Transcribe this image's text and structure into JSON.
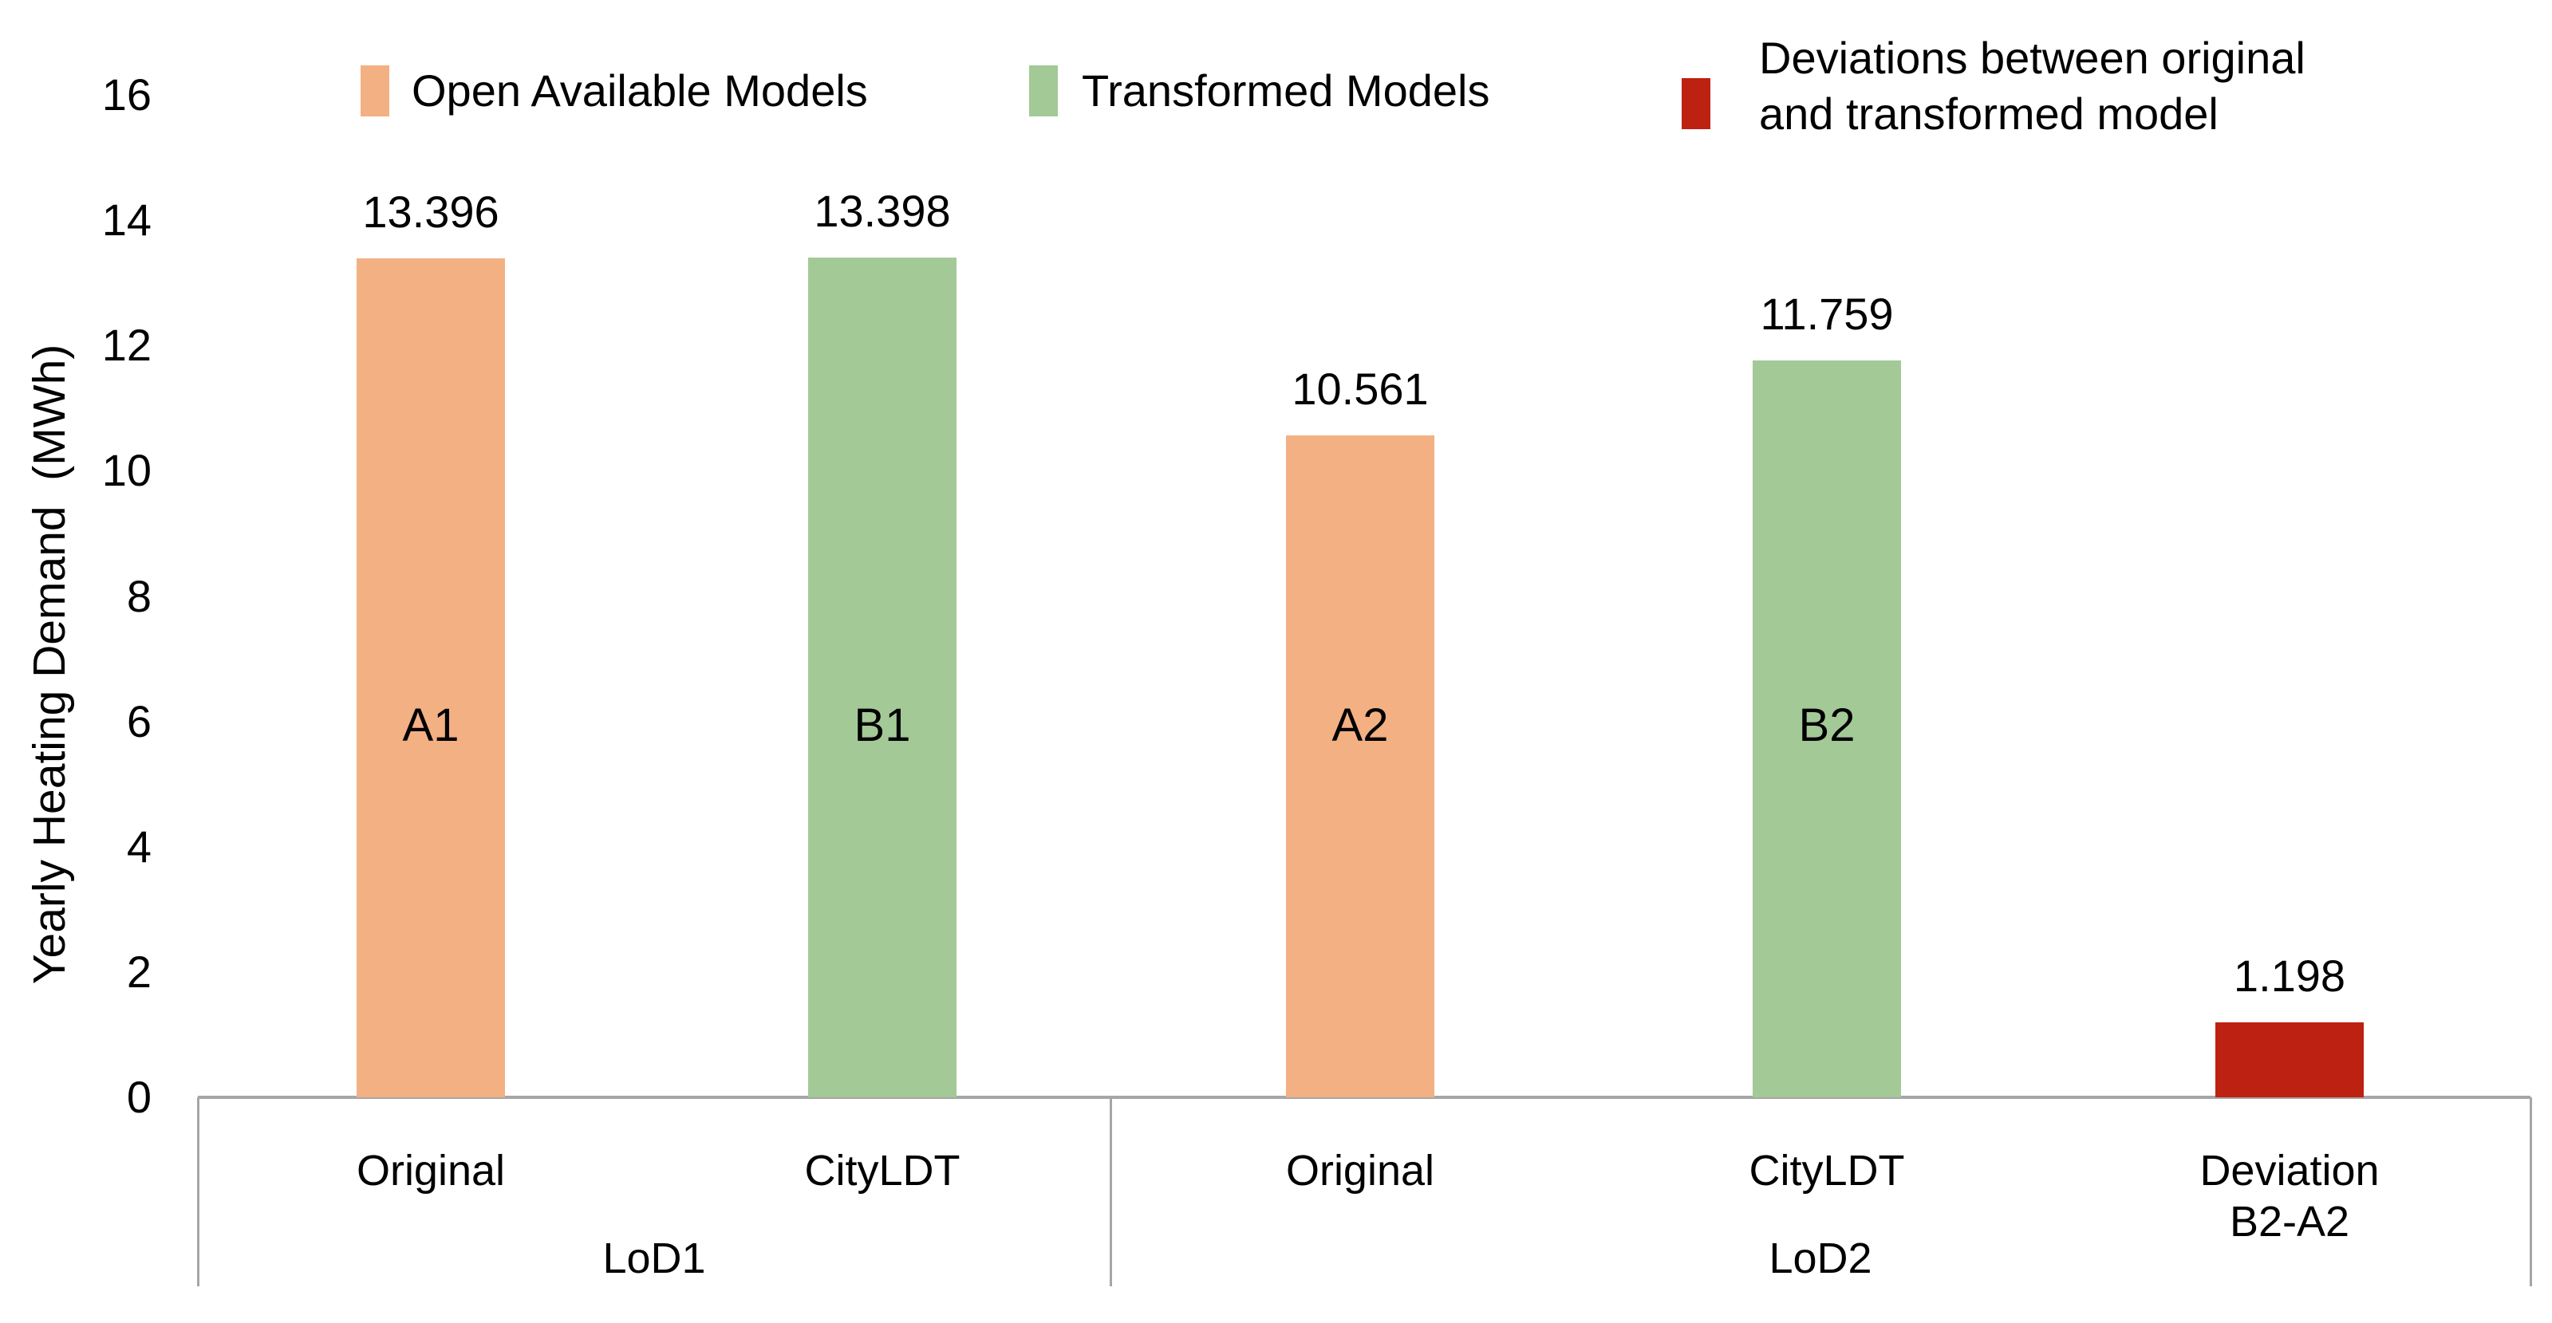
{
  "chart_data": {
    "type": "bar",
    "title": "",
    "xlabel": "",
    "ylabel": "Yearly Heating Demand  (MWh)",
    "ylim": [
      0,
      16
    ],
    "yticks": [
      0,
      2,
      4,
      6,
      8,
      10,
      12,
      14,
      16
    ],
    "grid": false,
    "legend_position": "top",
    "legend": [
      {
        "name": "Open Available Models",
        "color": "#F3B083"
      },
      {
        "name": "Transformed Models",
        "color": "#A3C996"
      },
      {
        "name": "Deviations between original\nand transformed model",
        "color": "#BC2112"
      }
    ],
    "sections": [
      {
        "label": "LoD1",
        "bars": [
          {
            "category": "Original",
            "bar_label": "A1",
            "series": "Open Available Models",
            "value": 13.396,
            "value_label": "13.396",
            "color": "#F3B083"
          },
          {
            "category": "CityLDT",
            "bar_label": "B1",
            "series": "Transformed Models",
            "value": 13.398,
            "value_label": "13.398",
            "color": "#A3C996"
          }
        ]
      },
      {
        "label": "LoD2",
        "bars": [
          {
            "category": "Original",
            "bar_label": "A2",
            "series": "Open Available Models",
            "value": 10.561,
            "value_label": "10.561",
            "color": "#F3B083"
          },
          {
            "category": "CityLDT",
            "bar_label": "B2",
            "series": "Transformed Models",
            "value": 11.759,
            "value_label": "11.759",
            "color": "#A3C996"
          },
          {
            "category": "Deviation\nB2-A2",
            "bar_label": "",
            "series": "Deviations between original and transformed model",
            "value": 1.198,
            "value_label": "1.198",
            "color": "#BC2112"
          }
        ]
      }
    ]
  }
}
